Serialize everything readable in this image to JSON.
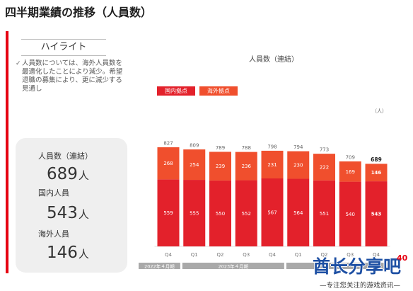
{
  "slide": {
    "title": "四半期業績の推移（人員数）",
    "page_number": "40"
  },
  "highlight": {
    "header": "ハイライト",
    "bullet_icon": "check-icon",
    "text": "人員数については、海外人員数を最適化したことにより減少。希望退職の募集により、更に減少する見通し"
  },
  "summary": {
    "items": [
      {
        "label": "人員数（連結）",
        "value": "689",
        "unit": "人"
      },
      {
        "label": "国内人員",
        "value": "543",
        "unit": "人"
      },
      {
        "label": "海外人員",
        "value": "146",
        "unit": "人"
      }
    ]
  },
  "colors": {
    "accent": "#e60012",
    "period_band": "#a9a9a9"
  },
  "chart_data": {
    "type": "bar",
    "stacked": true,
    "title": "人員数（連結）",
    "unit": "（人）",
    "categories": [
      "Q4",
      "Q1",
      "Q2",
      "Q3",
      "Q4",
      "Q1",
      "Q2",
      "Q3",
      "Q4"
    ],
    "periods": [
      "2022年４月期",
      "2023年４月期",
      ""
    ],
    "series": [
      {
        "name": "国内拠点",
        "color": "#e3212b",
        "values": [
          559,
          555,
          550,
          552,
          567,
          564,
          551,
          540,
          543
        ]
      },
      {
        "name": "海外拠点",
        "color": "#f04f2d",
        "values": [
          268,
          254,
          239,
          236,
          231,
          230,
          222,
          169,
          146
        ]
      }
    ],
    "totals": [
      827,
      809,
      789,
      788,
      798,
      794,
      773,
      709,
      689
    ],
    "legend": "top-left",
    "grid": false
  },
  "watermark": {
    "text": "酋长分享吧",
    "subtitle": "—专注您关注的游戏资讯—"
  }
}
